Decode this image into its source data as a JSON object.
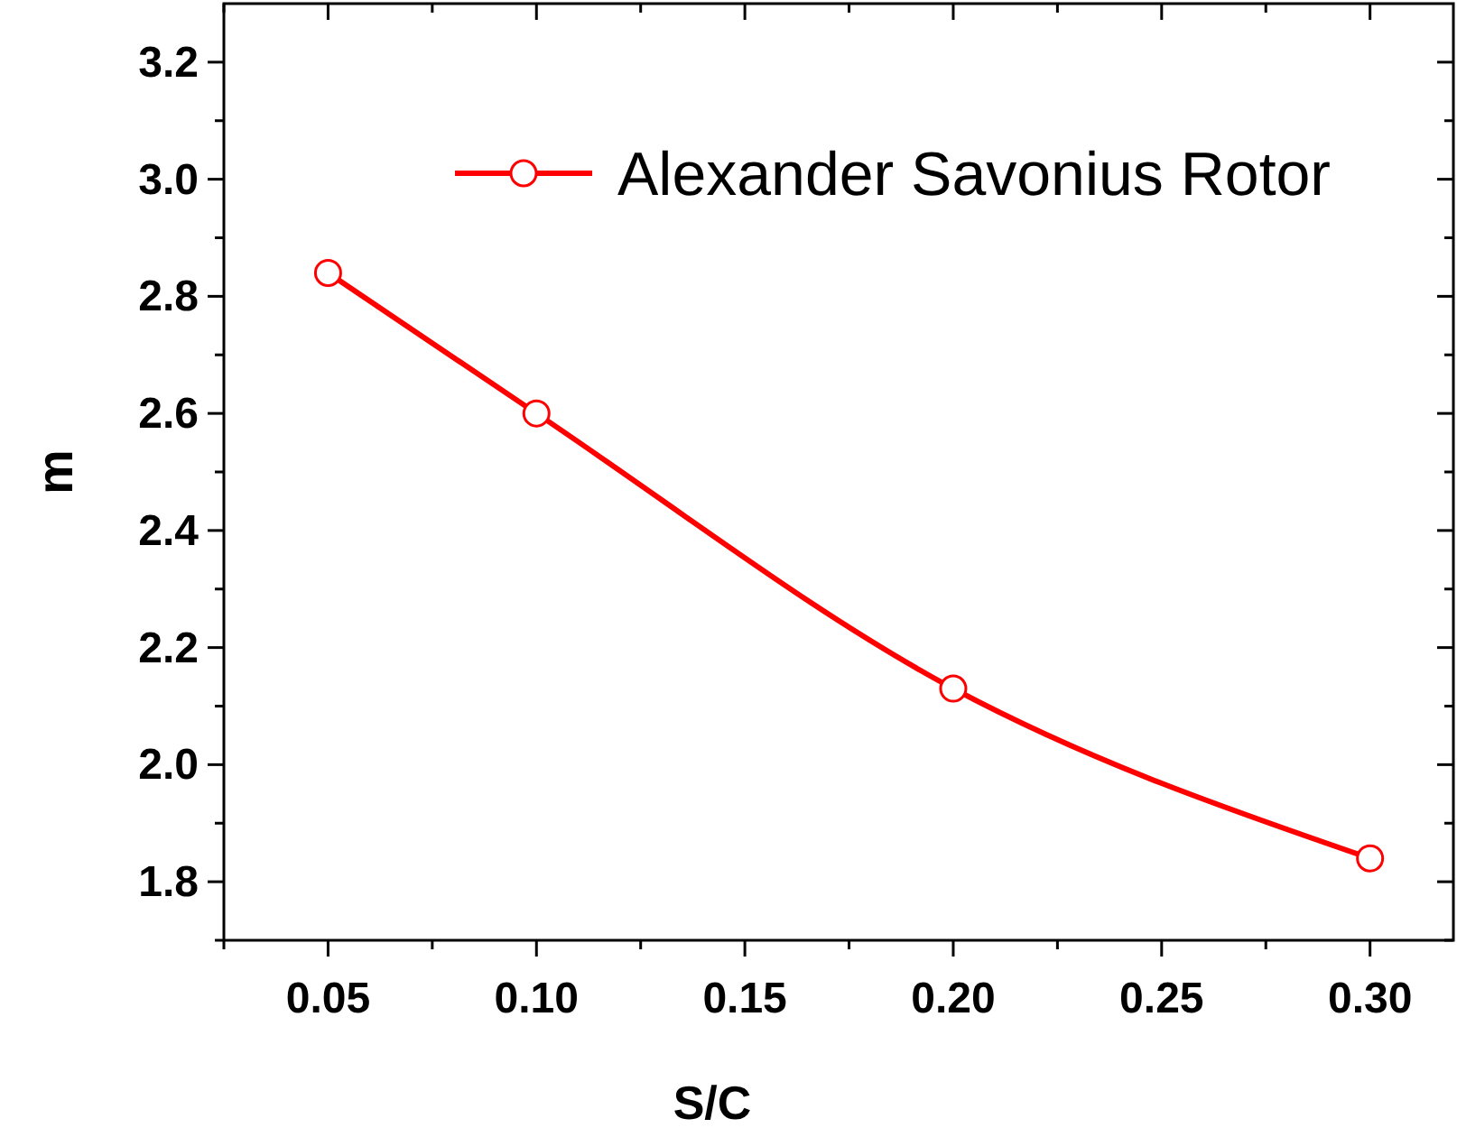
{
  "chart_data": {
    "type": "line",
    "xlabel": "S/C",
    "ylabel": "m",
    "x": [
      0.05,
      0.1,
      0.2,
      0.3
    ],
    "series": [
      {
        "name": "Alexander Savonius Rotor",
        "color": "#ff0000",
        "values": [
          2.84,
          2.6,
          2.13,
          1.84
        ]
      }
    ],
    "xlim": [
      0.025,
      0.32
    ],
    "ylim": [
      1.7,
      3.3
    ],
    "xticks": [
      {
        "value": 0.025,
        "label": null
      },
      {
        "value": 0.05,
        "label": "0.05"
      },
      {
        "value": 0.075,
        "label": null
      },
      {
        "value": 0.1,
        "label": "0.10"
      },
      {
        "value": 0.125,
        "label": null
      },
      {
        "value": 0.15,
        "label": "0.15"
      },
      {
        "value": 0.175,
        "label": null
      },
      {
        "value": 0.2,
        "label": "0.20"
      },
      {
        "value": 0.225,
        "label": null
      },
      {
        "value": 0.25,
        "label": "0.25"
      },
      {
        "value": 0.275,
        "label": null
      },
      {
        "value": 0.3,
        "label": "0.30"
      }
    ],
    "yticks": [
      {
        "value": 1.7,
        "label": null
      },
      {
        "value": 1.8,
        "label": "1.8"
      },
      {
        "value": 1.9,
        "label": null
      },
      {
        "value": 2.0,
        "label": "2.0"
      },
      {
        "value": 2.1,
        "label": null
      },
      {
        "value": 2.2,
        "label": "2.2"
      },
      {
        "value": 2.3,
        "label": null
      },
      {
        "value": 2.4,
        "label": "2.4"
      },
      {
        "value": 2.5,
        "label": null
      },
      {
        "value": 2.6,
        "label": "2.6"
      },
      {
        "value": 2.7,
        "label": null
      },
      {
        "value": 2.8,
        "label": "2.8"
      },
      {
        "value": 2.9,
        "label": null
      },
      {
        "value": 3.0,
        "label": "3.0"
      },
      {
        "value": 3.1,
        "label": null
      },
      {
        "value": 3.2,
        "label": "3.2"
      }
    ],
    "marker": "circle",
    "line_style": "solid",
    "legend": "top right",
    "grid": false
  }
}
